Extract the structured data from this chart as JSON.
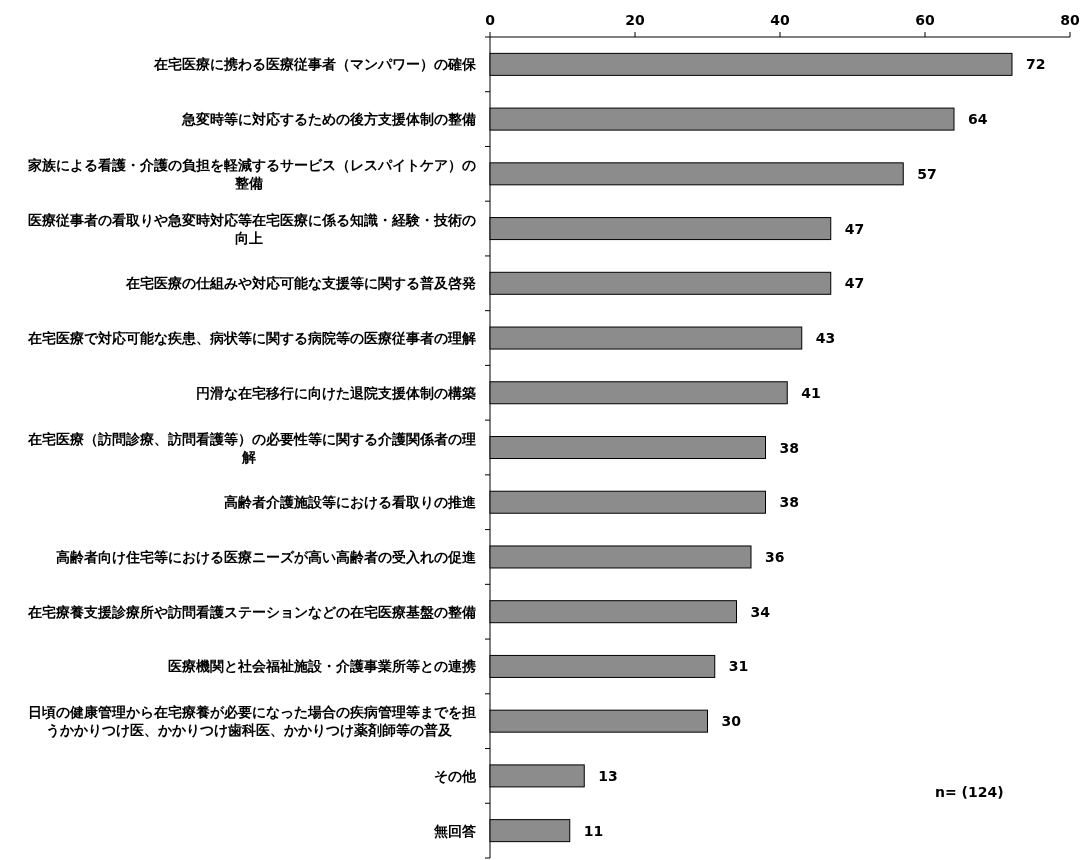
{
  "chart_data": {
    "type": "bar",
    "orientation": "horizontal",
    "categories": [
      "在宅医療に携わる医療従事者（マンパワー）の確保",
      "急変時等に対応するための後方支援体制の整備",
      "家族による看護・介護の負担を軽減するサービス（レスパイトケア）の整備",
      "医療従事者の看取りや急変時対応等在宅医療に係る知識・経験・技術の向上",
      "在宅医療の仕組みや対応可能な支援等に関する普及啓発",
      "在宅医療で対応可能な疾患、病状等に関する病院等の医療従事者の理解",
      "円滑な在宅移行に向けた退院支援体制の構築",
      "在宅医療（訪問診療、訪問看護等）の必要性等に関する介護関係者の理解",
      "高齢者介護施設等における看取りの推進",
      "高齢者向け住宅等における医療ニーズが高い高齢者の受入れの促進",
      "在宅療養支援診療所や訪問看護ステーションなどの在宅医療基盤の整備",
      "医療機関と社会福祉施設・介護事業所等との連携",
      "日頃の健康管理から在宅療養が必要になった場合の疾病管理等までを担うかかりつけ医、かかりつけ歯科医、かかりつけ薬剤師等の普及",
      "その他",
      "無回答"
    ],
    "values": [
      72,
      64,
      57,
      47,
      47,
      43,
      41,
      38,
      38,
      36,
      34,
      31,
      30,
      13,
      11
    ],
    "color": "#8c8c8c",
    "xlim": [
      0,
      80
    ],
    "xticks": [
      0,
      20,
      40,
      60,
      80
    ],
    "data_labels": true,
    "annotations": [
      "n= (124)"
    ]
  }
}
